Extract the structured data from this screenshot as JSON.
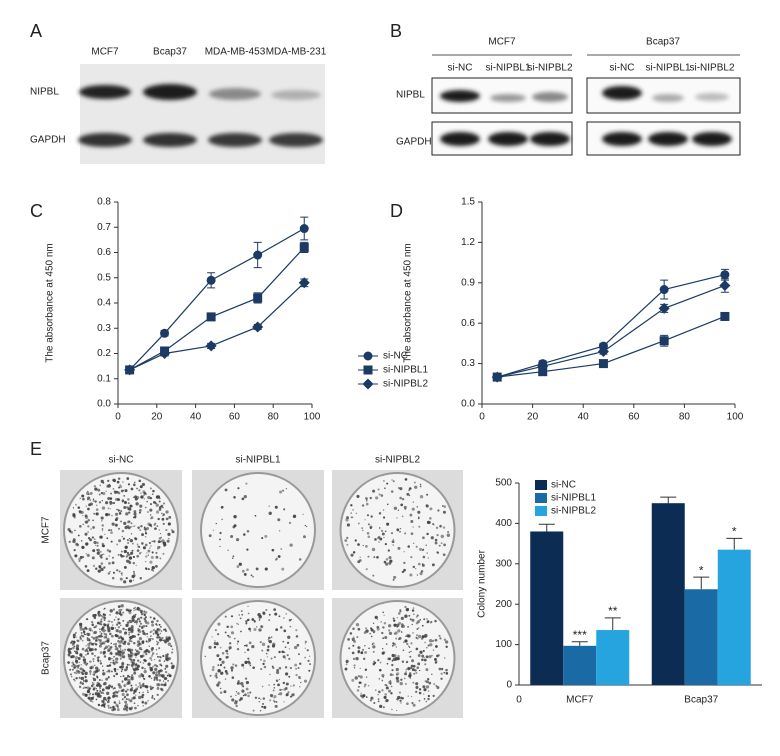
{
  "figure": {
    "panels": [
      "A",
      "B",
      "C",
      "D",
      "E"
    ],
    "blot_a": {
      "lanes": [
        "MCF7",
        "Bcap37",
        "MDA-MB-453",
        "MDA-MB-231"
      ],
      "rows": [
        "NIPBL",
        "GAPDH"
      ]
    },
    "blot_b": {
      "groups": [
        {
          "name": "MCF7",
          "lanes": [
            "si-NC",
            "si-NIPBL1",
            "si-NIPBL2"
          ]
        },
        {
          "name": "Bcap37",
          "lanes": [
            "si-NC",
            "si-NIPBL1",
            "si-NIPBL2"
          ]
        }
      ],
      "rows": [
        "NIPBL",
        "GAPDH"
      ]
    },
    "colony": {
      "columns": [
        "si-NC",
        "si-NIPBL1",
        "si-NIPBL2"
      ],
      "rows": [
        "MCF7",
        "Bcap37"
      ]
    }
  },
  "chart_data": [
    {
      "type": "line",
      "y_label": "The absorbance at 450 nm",
      "x": [
        6,
        24,
        48,
        72,
        96
      ],
      "xlim": [
        0,
        100
      ],
      "xticks": [
        0,
        20,
        40,
        60,
        80,
        100
      ],
      "ylim": [
        0,
        0.8
      ],
      "yticks": [
        {
          "value": 0,
          "label": "0.0"
        },
        0.1,
        0.2,
        0.3,
        0.4,
        0.5,
        0.6,
        0.7,
        0.8
      ],
      "legend": "right",
      "series": [
        {
          "name": "si-NC",
          "color": "#1c3a63",
          "marker": "circle",
          "values": [
            0.135,
            0.28,
            0.49,
            0.59,
            0.695
          ],
          "errors": [
            0.01,
            0.01,
            0.03,
            0.05,
            0.045
          ]
        },
        {
          "name": "si-NIPBL1",
          "color": "#1c3a63",
          "marker": "square",
          "values": [
            0.135,
            0.21,
            0.345,
            0.42,
            0.62
          ],
          "errors": [
            0.01,
            0.01,
            0.01,
            0.02,
            0.02
          ]
        },
        {
          "name": "si-NIPBL2",
          "color": "#1c3a63",
          "marker": "diamond",
          "values": [
            0.135,
            0.2,
            0.23,
            0.305,
            0.48
          ],
          "errors": [
            0.01,
            0.01,
            0.01,
            0.01,
            0.015
          ]
        }
      ]
    },
    {
      "type": "line",
      "y_label": "The absorbance at 450 nm",
      "x": [
        6,
        24,
        48,
        72,
        96
      ],
      "xlim": [
        0,
        100
      ],
      "xticks": [
        0,
        20,
        40,
        60,
        80,
        100
      ],
      "ylim": [
        0,
        1.5
      ],
      "yticks": [
        {
          "value": 0,
          "label": "0.0"
        },
        0.3,
        0.6,
        0.9,
        1.2,
        1.5
      ],
      "series": [
        {
          "name": "si-NC",
          "color": "#1c3a63",
          "marker": "circle",
          "values": [
            0.2,
            0.3,
            0.43,
            0.85,
            0.96
          ],
          "errors": [
            0.01,
            0.02,
            0.02,
            0.07,
            0.04
          ]
        },
        {
          "name": "si-NIPBL1",
          "color": "#1c3a63",
          "marker": "square",
          "values": [
            0.2,
            0.24,
            0.3,
            0.47,
            0.65
          ],
          "errors": [
            0.01,
            0.02,
            0.02,
            0.04,
            0.02
          ]
        },
        {
          "name": "si-NIPBL2",
          "color": "#1c3a63",
          "marker": "diamond",
          "values": [
            0.2,
            0.28,
            0.39,
            0.71,
            0.88
          ],
          "errors": [
            0.01,
            0.02,
            0.02,
            0.03,
            0.05
          ]
        }
      ]
    },
    {
      "type": "bar",
      "y_label": "Colony number",
      "origin_label": "0",
      "categories": [
        "MCF7",
        "Bcap37"
      ],
      "ylim": [
        0,
        500
      ],
      "yticks": [
        0,
        100,
        200,
        300,
        400,
        500
      ],
      "legend": "upper left",
      "series": [
        {
          "name": "si-NC",
          "color": "#0d2c54",
          "values": [
            380,
            450
          ],
          "errors": [
            18,
            15
          ]
        },
        {
          "name": "si-NIPBL1",
          "color": "#1a6aa6",
          "values": [
            97,
            237
          ],
          "errors": [
            10,
            30
          ],
          "significance": [
            "***",
            "*"
          ]
        },
        {
          "name": "si-NIPBL2",
          "color": "#25a4e0",
          "values": [
            136,
            335
          ],
          "errors": [
            30,
            28
          ],
          "significance": [
            "**",
            "*"
          ]
        }
      ]
    }
  ]
}
